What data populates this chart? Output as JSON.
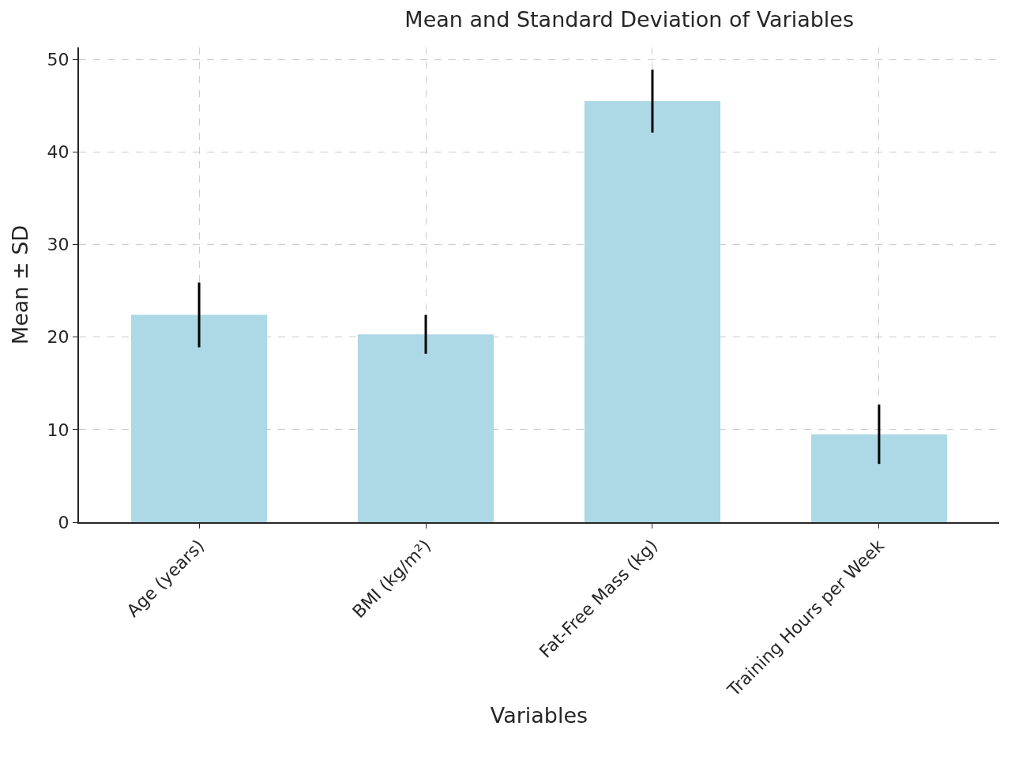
{
  "chart_data": {
    "type": "bar",
    "title": "Mean and Standard Deviation of Variables",
    "xlabel": "Variables",
    "ylabel": "Mean ± SD",
    "categories": [
      "Age (years)",
      "BMI (kg/m²)",
      "Fat-Free Mass (kg)",
      "Training Hours per Week"
    ],
    "values": [
      22.4,
      20.3,
      45.5,
      9.5
    ],
    "errors": [
      3.5,
      2.1,
      3.4,
      3.2
    ],
    "color": "#add8e6",
    "ylim": [
      0,
      51.3
    ],
    "yticks": [
      0,
      10,
      20,
      30,
      40,
      50
    ],
    "grid": true
  }
}
